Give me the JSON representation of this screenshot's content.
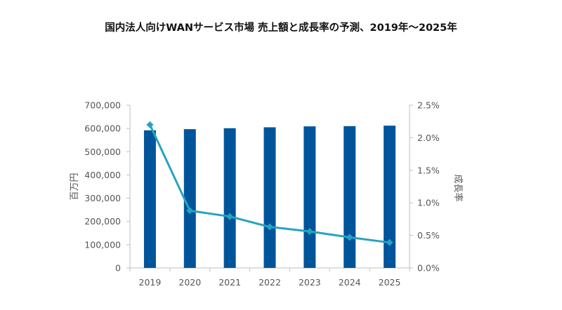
{
  "title": "国内法人向けWANサービス市場 売上額と成長率の予測、2019年～2025年",
  "chart_data": {
    "type": "bar",
    "title": "国内法人向けWANサービス市場 売上額と成長率の予測、2019年～2025年",
    "categories": [
      "2019",
      "2020",
      "2021",
      "2022",
      "2023",
      "2024",
      "2025"
    ],
    "series": [
      {
        "type": "bar",
        "axis": "left",
        "color": "#00559a",
        "values": [
          592000,
          597000,
          601000,
          605000,
          609000,
          610000,
          612000
        ]
      },
      {
        "type": "line",
        "axis": "right",
        "color": "#27a3c0",
        "marker": "diamond",
        "values": [
          2.2,
          0.88,
          0.79,
          0.63,
          0.56,
          0.47,
          0.39
        ]
      }
    ],
    "ylabel": "百万円",
    "y2label": "成長率",
    "ylim": [
      0,
      700000
    ],
    "y2lim": [
      0,
      2.5
    ],
    "yticks": [
      "0",
      "100,000",
      "200,000",
      "300,000",
      "400,000",
      "500,000",
      "600,000",
      "700,000"
    ],
    "y2ticks": [
      "0.0%",
      "0.5%",
      "1.0%",
      "1.5%",
      "2.0%",
      "2.5%"
    ],
    "grid": false,
    "legend": "none"
  }
}
